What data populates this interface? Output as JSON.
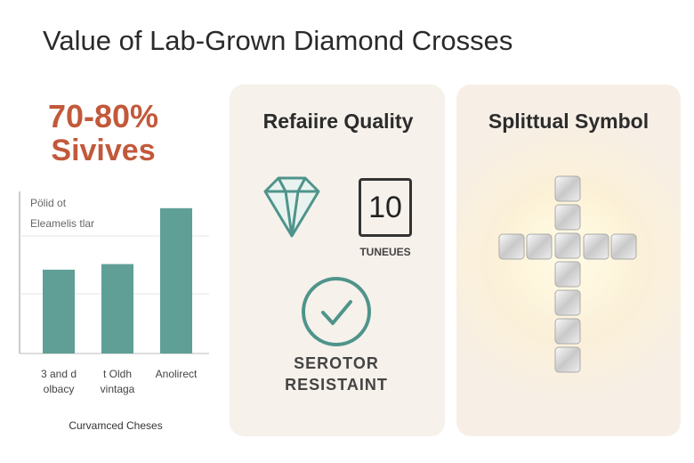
{
  "header": {
    "title": "Value of Lab-Grown Diamond Crosses"
  },
  "stat": {
    "value": "70-80%",
    "label": "Sivives"
  },
  "chart_data": {
    "type": "bar",
    "legend_lines": [
      "Pölid ot",
      "Eleamelis tlar"
    ],
    "categories": [
      "3 and d\nolbacy",
      "t Oldh\nvintaga",
      "Anolirect"
    ],
    "values": [
      1.5,
      1.6,
      2.6
    ],
    "color": "#5f9f96",
    "ylim": [
      0,
      2.9
    ],
    "x_label": "Curvamced Cheses"
  },
  "quality_card": {
    "title": "Refaiire Quality",
    "badge": "10",
    "badge_label": "TUNEUES",
    "check_label": [
      "SEROTOR",
      "RESISTAINT"
    ]
  },
  "symbol_card": {
    "title": "Splittual Symbol"
  }
}
